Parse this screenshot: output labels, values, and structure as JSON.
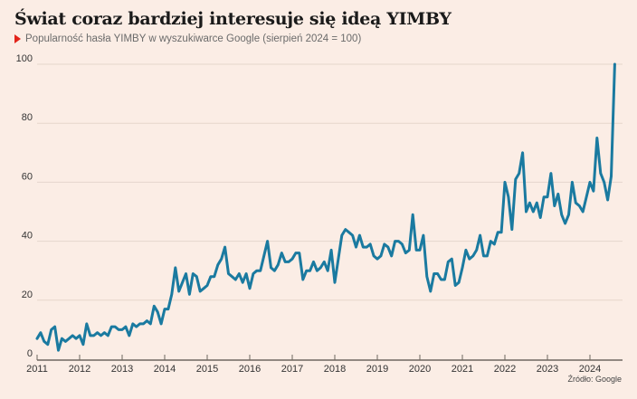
{
  "header": {
    "title": "Świat coraz bardziej interesuje się ideą YIMBY",
    "subtitle": "Popularność hasła YIMBY w wyszukiwarce Google (sierpień 2024 = 100)"
  },
  "footer": {
    "source": "Źródło: Google"
  },
  "colors": {
    "line": "#1a7aa0",
    "grid": "#e6d6cc",
    "axis": "#6e6660",
    "marker": "#e2231a",
    "background": "#fbede5"
  },
  "chart_data": {
    "type": "line",
    "title": "Świat coraz bardziej interesuje się ideą YIMBY",
    "subtitle": "Popularność hasła YIMBY w wyszukiwarce Google (sierpień 2024 = 100)",
    "xlabel": "",
    "ylabel": "",
    "ylim": [
      0,
      100
    ],
    "yticks": [
      0,
      20,
      40,
      60,
      80,
      100
    ],
    "xticks": [
      "2011",
      "2012",
      "2013",
      "2014",
      "2015",
      "2016",
      "2017",
      "2018",
      "2019",
      "2020",
      "2021",
      "2022",
      "2023",
      "2024"
    ],
    "xrange": [
      "2011-01",
      "2024-08"
    ],
    "grid": true,
    "legend": "none",
    "series": [
      {
        "name": "YIMBY",
        "start": "2011-01",
        "frequency": "monthly",
        "values": [
          7,
          9,
          6,
          5,
          10,
          11,
          3,
          7,
          6,
          7,
          8,
          7,
          8,
          5,
          12,
          8,
          8,
          9,
          8,
          9,
          8,
          11,
          11,
          10,
          10,
          11,
          8,
          12,
          11,
          12,
          12,
          13,
          12,
          18,
          16,
          12,
          17,
          17,
          22,
          31,
          23,
          26,
          29,
          22,
          29,
          28,
          23,
          24,
          25,
          28,
          28,
          32,
          34,
          38,
          29,
          28,
          27,
          29,
          26,
          29,
          24,
          29,
          30,
          30,
          35,
          40,
          31,
          30,
          32,
          36,
          33,
          33,
          34,
          36,
          36,
          27,
          30,
          30,
          33,
          30,
          31,
          33,
          30,
          37,
          26,
          34,
          42,
          44,
          43,
          42,
          38,
          42,
          38,
          38,
          39,
          35,
          34,
          35,
          39,
          38,
          35,
          40,
          40,
          39,
          36,
          37,
          49,
          37,
          37,
          42,
          28,
          23,
          29,
          29,
          27,
          27,
          33,
          34,
          25,
          26,
          31,
          37,
          34,
          35,
          37,
          42,
          35,
          35,
          40,
          39,
          43,
          43,
          60,
          55,
          44,
          61,
          63,
          70,
          50,
          53,
          50,
          53,
          48,
          55,
          55,
          63,
          52,
          56,
          49,
          46,
          49,
          60,
          53,
          52,
          50,
          55,
          60,
          57,
          75,
          63,
          60,
          54,
          62,
          100
        ]
      }
    ]
  }
}
